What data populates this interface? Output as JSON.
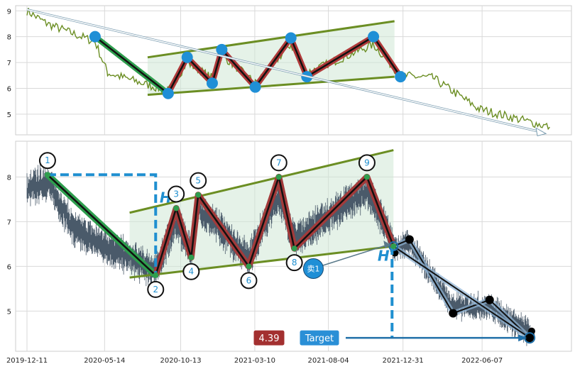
{
  "chart_data": [
    {
      "type": "line",
      "panel": "overview",
      "ylim": [
        4.2,
        9.2
      ],
      "y_ticks": [
        "5",
        "6",
        "7",
        "8",
        "9"
      ],
      "grid": true,
      "line_color": "#6b8e23",
      "wave_points": [
        {
          "date": "2020-04-25",
          "value": 8.0
        },
        {
          "date": "2020-09-18",
          "value": 5.8
        },
        {
          "date": "2020-10-26",
          "value": 7.2
        },
        {
          "date": "2020-12-15",
          "value": 6.2
        },
        {
          "date": "2021-01-03",
          "value": 7.5
        },
        {
          "date": "2021-03-11",
          "value": 6.05
        },
        {
          "date": "2021-05-21",
          "value": 7.95
        },
        {
          "date": "2021-06-22",
          "value": 6.45
        },
        {
          "date": "2021-11-02",
          "value": 8.0
        },
        {
          "date": "2021-12-26",
          "value": 6.45
        }
      ],
      "channel_upper": [
        {
          "date": "2020-08-08",
          "value": 7.2
        },
        {
          "date": "2021-12-14",
          "value": 8.6
        }
      ],
      "channel_lower": [
        {
          "date": "2020-08-08",
          "value": 5.75
        },
        {
          "date": "2021-12-14",
          "value": 6.45
        }
      ],
      "trend_arrow": [
        {
          "date": "2019-12-11",
          "value": 9.05
        },
        {
          "date": "2022-10-04",
          "value": 4.3
        }
      ]
    },
    {
      "type": "line",
      "panel": "pattern",
      "ylim": [
        4.1,
        8.8
      ],
      "y_ticks": [
        "5",
        "6",
        "7",
        "8"
      ],
      "x_ticks": [
        "2019-12-11",
        "2020-05-14",
        "2020-10-13",
        "2021-03-10",
        "2021-08-04",
        "2021-12-31",
        "2022-06-07"
      ],
      "grid": true,
      "price_color": "#4a5a6a",
      "pattern_points": [
        {
          "label": "1",
          "date": "2020-01-21",
          "value": 8.05
        },
        {
          "label": "2",
          "date": "2020-08-24",
          "value": 5.8
        },
        {
          "label": "3",
          "date": "2020-10-04",
          "value": 7.3
        },
        {
          "label": "4",
          "date": "2020-11-03",
          "value": 6.2
        },
        {
          "label": "5",
          "date": "2020-11-17",
          "value": 7.6
        },
        {
          "label": "6",
          "date": "2021-02-26",
          "value": 6.0
        },
        {
          "label": "7",
          "date": "2021-04-27",
          "value": 8.0
        },
        {
          "label": "8",
          "date": "2021-05-28",
          "value": 6.4
        },
        {
          "label": "9",
          "date": "2021-10-20",
          "value": 8.0
        },
        {
          "label": "",
          "date": "2021-12-12",
          "value": 6.45
        }
      ],
      "channel_upper": [
        {
          "date": "2020-07-03",
          "value": 7.2
        },
        {
          "date": "2021-12-12",
          "value": 8.6
        }
      ],
      "channel_lower": [
        {
          "date": "2020-07-03",
          "value": 5.75
        },
        {
          "date": "2021-12-12",
          "value": 6.45
        }
      ],
      "forecast_path": [
        {
          "date": "2021-12-12",
          "value": 6.45
        },
        {
          "date": "2022-01-13",
          "value": 6.6
        },
        {
          "date": "2022-04-10",
          "value": 4.95
        },
        {
          "date": "2022-06-22",
          "value": 5.25
        },
        {
          "date": "2022-09-10",
          "value": 4.4
        }
      ],
      "forecast_extra": [
        {
          "date": "2021-12-15",
          "value": 6.3
        },
        {
          "date": "2022-09-14",
          "value": 4.55
        },
        {
          "date": "2022-09-13",
          "value": 4.45
        }
      ],
      "height_marker": {
        "label": "H",
        "from": 8.05,
        "to": 5.8
      },
      "target_marker": {
        "label": "H",
        "from": 6.45,
        "to": 4.4
      },
      "sell_signal": {
        "label": "卖1",
        "date": "2021-07-05",
        "value": 5.95
      },
      "price_box": {
        "label": "4.39",
        "color": "#a33030"
      },
      "target_box": {
        "label": "Target",
        "color": "#2a8fd6"
      }
    }
  ]
}
